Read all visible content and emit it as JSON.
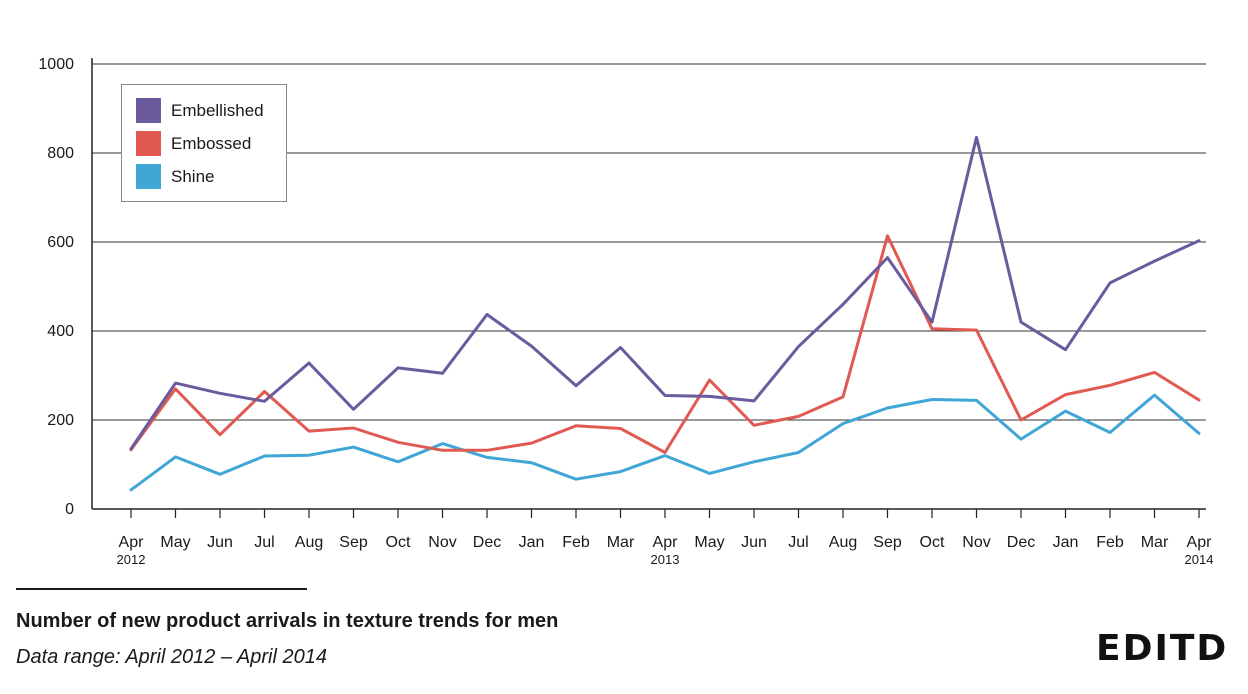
{
  "chart_data": {
    "type": "line",
    "title": "",
    "xlabel": "",
    "ylabel": "",
    "ylim": [
      0,
      1000
    ],
    "yticks": [
      0,
      200,
      400,
      600,
      800,
      1000
    ],
    "grid": true,
    "legend_position": "top-left",
    "categories": [
      "Apr",
      "May",
      "Jun",
      "Jul",
      "Aug",
      "Sep",
      "Oct",
      "Nov",
      "Dec",
      "Jan",
      "Feb",
      "Mar",
      "Apr",
      "May",
      "Jun",
      "Jul",
      "Aug",
      "Sep",
      "Oct",
      "Nov",
      "Dec",
      "Jan",
      "Feb",
      "Mar",
      "Apr"
    ],
    "category_sublabels": [
      "2012",
      "",
      "",
      "",
      "",
      "",
      "",
      "",
      "",
      "",
      "",
      "",
      "2013",
      "",
      "",
      "",
      "",
      "",
      "",
      "",
      "",
      "",
      "",
      "",
      "2014"
    ],
    "series": [
      {
        "name": "Embellished",
        "color": "#6b5b9e",
        "values": [
          135,
          283,
          260,
          242,
          328,
          224,
          317,
          305,
          437,
          366,
          277,
          363,
          255,
          253,
          243,
          365,
          460,
          565,
          420,
          835,
          420,
          358,
          508,
          557,
          603
        ]
      },
      {
        "name": "Embossed",
        "color": "#e05a52",
        "values": [
          133,
          270,
          167,
          264,
          175,
          182,
          150,
          132,
          132,
          148,
          187,
          181,
          127,
          290,
          188,
          208,
          252,
          614,
          405,
          402,
          200,
          257,
          278,
          307,
          245
        ]
      },
      {
        "name": "Shine",
        "color": "#3fa6d6",
        "values": [
          43,
          117,
          78,
          119,
          121,
          139,
          106,
          147,
          116,
          104,
          67,
          84,
          120,
          80,
          106,
          127,
          192,
          227,
          246,
          244,
          157,
          220,
          172,
          256,
          170
        ]
      }
    ]
  },
  "caption": {
    "title": "Number of new product arrivals in texture trends for men",
    "subtitle": "Data range: April 2012 – April 2014"
  },
  "brand": {
    "logo_text": "EDITD"
  }
}
